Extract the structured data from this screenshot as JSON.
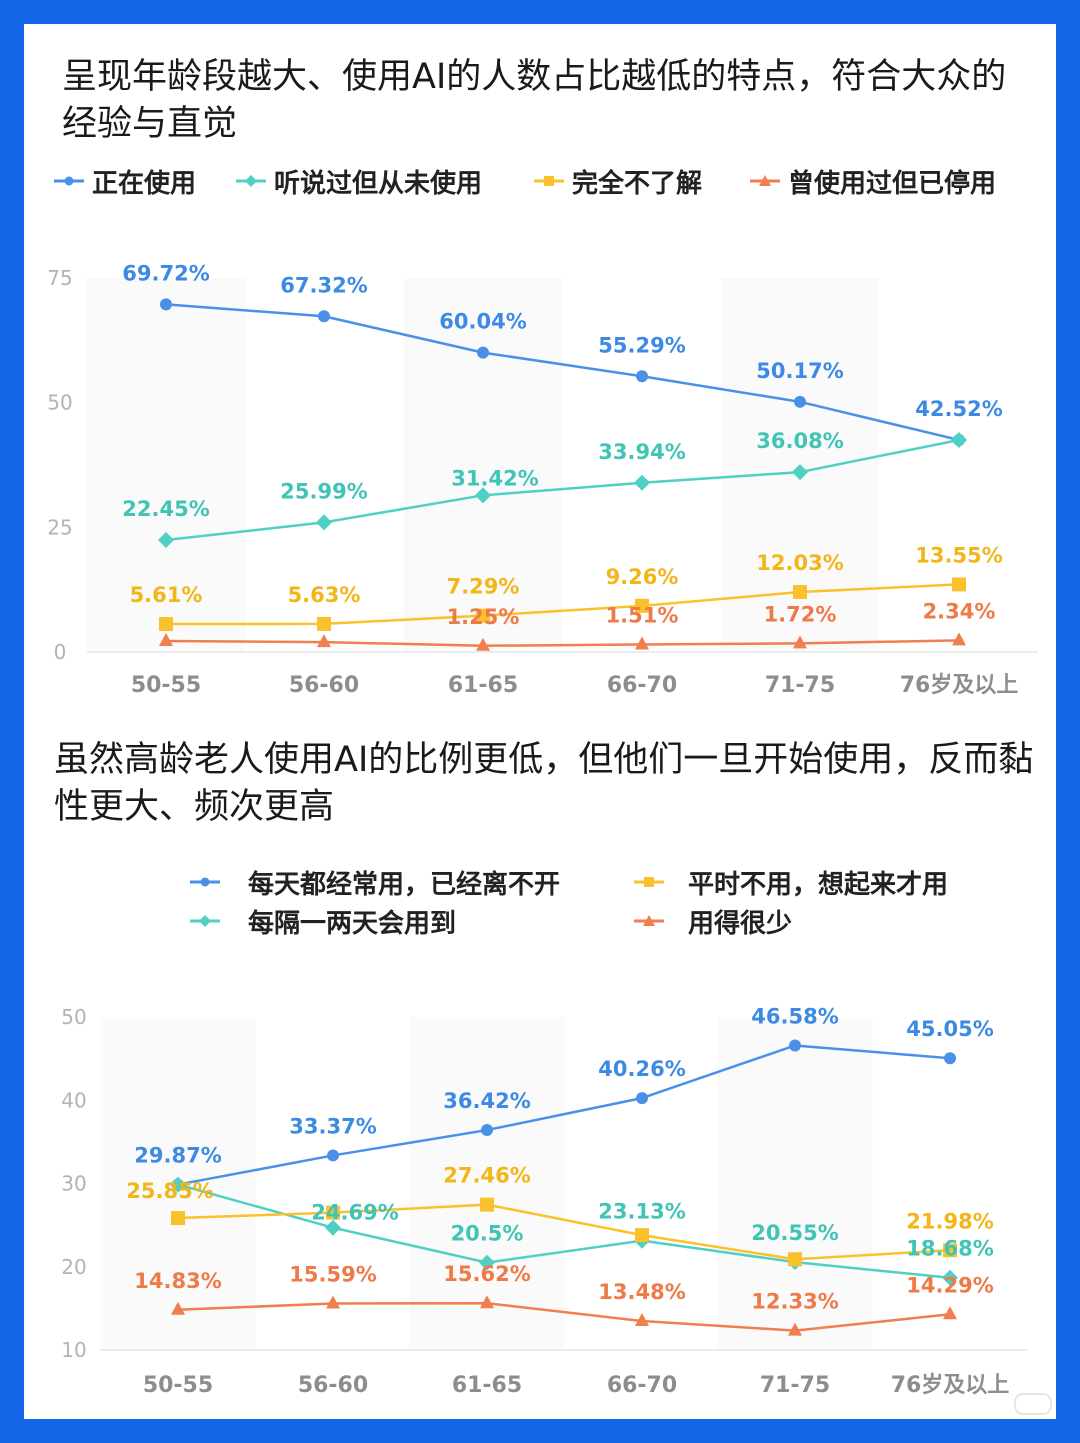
{
  "colors": {
    "page_border": "#1565e8",
    "blue": "#4a90e8",
    "teal": "#4fd0c4",
    "yellow": "#fbc12d",
    "orange": "#f07e4e",
    "blue_label": "#3d8ae5",
    "teal_label": "#3fc4b6",
    "yellow_label": "#f2b619",
    "orange_label": "#ee7a48",
    "axis_text": "#b3b3b3",
    "category_text": "#8d8d8d"
  },
  "section1": {
    "title": "呈现年龄段越大、使用AI的人数占比越低的特点，符合大众的经验与直觉",
    "legend": [
      {
        "label": "正在使用",
        "color": "#4a90e8",
        "marker": "circle"
      },
      {
        "label": "听说过但从未使用",
        "color": "#4fd0c4",
        "marker": "diamond"
      },
      {
        "label": "完全不了解",
        "color": "#fbc12d",
        "marker": "square"
      },
      {
        "label": "曾使用过但已停用",
        "color": "#f07e4e",
        "marker": "triangle"
      }
    ]
  },
  "section2": {
    "title": "虽然高龄老人使用AI的比例更低，但他们一旦开始使用，反而黏性更大、频次更高",
    "legend": [
      {
        "label": "每天都经常用，已经离不开",
        "color": "#4a90e8",
        "marker": "circle"
      },
      {
        "label": "平时不用，想起来才用",
        "color": "#fbc12d",
        "marker": "square"
      },
      {
        "label": "每隔一两天会用到",
        "color": "#4fd0c4",
        "marker": "diamond"
      },
      {
        "label": "用得很少",
        "color": "#f07e4e",
        "marker": "triangle"
      }
    ]
  },
  "chart_data": [
    {
      "type": "line",
      "categories": [
        "50-55",
        "56-60",
        "61-65",
        "66-70",
        "71-75",
        "76岁及以上"
      ],
      "yticks": [
        "0",
        "25",
        "50",
        "75"
      ],
      "ylim": [
        0,
        75
      ],
      "grid": false,
      "series": [
        {
          "name": "正在使用",
          "marker": "circle",
          "color": "#4a90e8",
          "label_color": "#3d8ae5",
          "values": [
            69.72,
            67.32,
            60.04,
            55.29,
            50.17,
            42.52
          ],
          "labels": [
            "69.72%",
            "67.32%",
            "60.04%",
            "55.29%",
            "50.17%",
            "42.52%"
          ]
        },
        {
          "name": "听说过但从未使用",
          "marker": "diamond",
          "color": "#4fd0c4",
          "label_color": "#3fc4b6",
          "values": [
            22.45,
            25.99,
            31.42,
            33.94,
            36.08,
            42.52
          ],
          "labels": [
            "22.45%",
            "25.99%",
            "31.42%",
            "33.94%",
            "36.08%",
            ""
          ]
        },
        {
          "name": "完全不了解",
          "marker": "square",
          "color": "#fbc12d",
          "label_color": "#f2b619",
          "values": [
            5.61,
            5.63,
            7.29,
            9.26,
            12.03,
            13.55
          ],
          "labels": [
            "5.61%",
            "5.63%",
            "7.29%",
            "9.26%",
            "12.03%",
            "13.55%"
          ]
        },
        {
          "name": "曾使用过但已停用",
          "marker": "triangle",
          "color": "#f07e4e",
          "label_color": "#ee7a48",
          "values": [
            2.21,
            1.98,
            1.25,
            1.51,
            1.72,
            2.34
          ],
          "labels": [
            "",
            "",
            "1.25%",
            "1.51%",
            "1.72%",
            "2.34%"
          ]
        }
      ]
    },
    {
      "type": "line",
      "categories": [
        "50-55",
        "56-60",
        "61-65",
        "66-70",
        "71-75",
        "76岁及以上"
      ],
      "yticks": [
        "10",
        "20",
        "30",
        "40",
        "50"
      ],
      "ylim": [
        10,
        50
      ],
      "grid": false,
      "series": [
        {
          "name": "每天都经常用，已经离不开",
          "marker": "circle",
          "color": "#4a90e8",
          "label_color": "#3d8ae5",
          "values": [
            29.87,
            33.37,
            36.42,
            40.26,
            46.58,
            45.05
          ],
          "labels": [
            "29.87%",
            "33.37%",
            "36.42%",
            "40.26%",
            "46.58%",
            "45.05%"
          ]
        },
        {
          "name": "每隔一两天会用到",
          "marker": "diamond",
          "color": "#4fd0c4",
          "label_color": "#3fc4b6",
          "values": [
            29.87,
            24.69,
            20.5,
            23.13,
            20.55,
            18.68
          ],
          "labels": [
            "",
            "24.69%",
            "20.5%",
            "23.13%",
            "20.55%",
            "18.68%"
          ]
        },
        {
          "name": "平时不用，想起来才用",
          "marker": "square",
          "color": "#fbc12d",
          "label_color": "#f2b619",
          "values": [
            25.85,
            26.5,
            27.46,
            23.8,
            20.9,
            21.98
          ],
          "labels": [
            "25.85%",
            "",
            "27.46%",
            "",
            "",
            "21.98%"
          ]
        },
        {
          "name": "用得很少",
          "marker": "triangle",
          "color": "#f07e4e",
          "label_color": "#ee7a48",
          "values": [
            14.83,
            15.59,
            15.62,
            13.48,
            12.33,
            14.29
          ],
          "labels": [
            "14.83%",
            "15.59%",
            "15.62%",
            "13.48%",
            "12.33%",
            "14.29%"
          ]
        }
      ]
    }
  ]
}
